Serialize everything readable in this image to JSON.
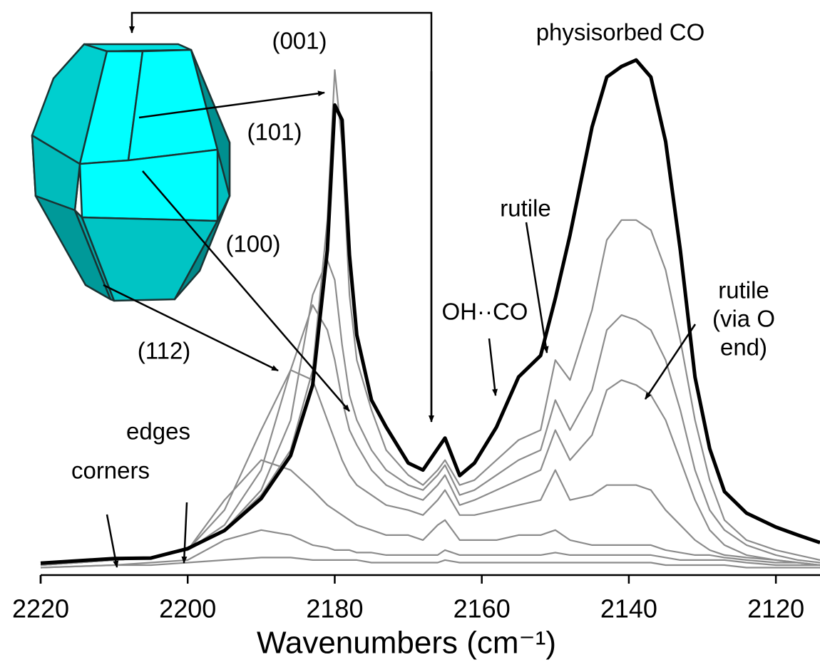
{
  "chart_data": {
    "type": "line",
    "xlabel": "Wavenumbers (cm⁻¹)",
    "x": [
      2220,
      2210,
      2205,
      2200,
      2195,
      2190,
      2186,
      2183,
      2181,
      2180,
      2179,
      2178,
      2177,
      2175,
      2173,
      2170,
      2168,
      2166,
      2165,
      2163,
      2161,
      2158,
      2155,
      2152,
      2150,
      2148,
      2145,
      2143,
      2141,
      2139,
      2137,
      2135,
      2133,
      2131,
      2129,
      2127,
      2124,
      2120,
      2117,
      2114
    ],
    "xlim": [
      2220,
      2114
    ],
    "xticks": [
      2220,
      2200,
      2180,
      2160,
      2140,
      2120
    ],
    "ylim": [
      -1,
      114
    ],
    "series": [
      {
        "color": "#8c8c8c",
        "values": [
          0.5,
          1,
          1,
          1.5,
          2,
          2.5,
          2.5,
          2,
          2,
          2,
          2,
          2,
          2,
          1.5,
          1.5,
          1.5,
          1.5,
          1.5,
          2,
          1.5,
          1.5,
          1.5,
          1.5,
          1.5,
          1.5,
          1.5,
          1.5,
          1.5,
          1.5,
          1.5,
          1.5,
          1,
          1,
          1,
          1,
          1,
          0.5,
          0.5,
          0.5,
          0.5
        ]
      },
      {
        "color": "#8c8c8c",
        "values": [
          0.5,
          1,
          1.5,
          2,
          6,
          8,
          7,
          5,
          4.5,
          4,
          4,
          4,
          3.5,
          3.5,
          3,
          3,
          3,
          3,
          4,
          3,
          3,
          3,
          3,
          3,
          3.5,
          3,
          3,
          3,
          3,
          3,
          3,
          2.5,
          2,
          2,
          2,
          2,
          1.5,
          1,
          1,
          1
        ]
      },
      {
        "color": "#8c8c8c",
        "values": [
          1,
          2,
          2.5,
          4,
          14,
          22,
          20,
          16,
          13,
          12,
          11,
          10,
          9,
          8,
          7,
          7,
          6,
          9,
          10,
          6,
          6,
          6,
          7,
          7,
          8,
          6,
          5,
          5,
          5,
          5,
          5,
          4,
          3.5,
          3,
          3,
          2.5,
          2,
          1.5,
          1.5,
          1
        ]
      },
      {
        "color": "#8c8c8c",
        "values": [
          1,
          2,
          2.5,
          4,
          12,
          28,
          40,
          38,
          30,
          26,
          22,
          19,
          17,
          15,
          13,
          12,
          11,
          14,
          16,
          11,
          11,
          12,
          13,
          14,
          20,
          14,
          15,
          17,
          17,
          17,
          16,
          12,
          9,
          6,
          4,
          3,
          2.5,
          2,
          1.5,
          1
        ]
      },
      {
        "color": "#8c8c8c",
        "values": [
          1,
          2,
          2.5,
          4,
          9,
          20,
          40,
          53,
          48,
          42,
          34,
          28,
          25,
          20,
          17,
          15,
          14,
          17,
          19,
          13,
          14,
          16,
          18,
          20,
          28,
          22,
          27,
          36,
          38,
          37,
          35,
          30,
          22,
          14,
          8,
          5,
          3,
          2,
          1.5,
          1
        ]
      },
      {
        "color": "#8c8c8c",
        "values": [
          1,
          2,
          2.5,
          4,
          8,
          16,
          30,
          55,
          62,
          58,
          45,
          35,
          30,
          24,
          20,
          17,
          16,
          19,
          21,
          15,
          16,
          19,
          22,
          24,
          34,
          28,
          36,
          48,
          51,
          50,
          48,
          42,
          32,
          20,
          12,
          8,
          5,
          3,
          2,
          1.5
        ]
      },
      {
        "color": "#8c8c8c",
        "values": [
          1,
          2,
          2.5,
          4,
          8,
          15,
          24,
          40,
          70,
          100,
          85,
          55,
          42,
          32,
          24,
          19,
          17,
          20,
          22,
          17,
          18,
          22,
          26,
          28,
          42,
          38,
          52,
          66,
          70,
          70,
          68,
          60,
          46,
          30,
          18,
          10,
          6,
          4,
          3,
          2
        ]
      },
      {
        "color": "#000000",
        "values": [
          1.4,
          2.3,
          2.4,
          4.3,
          7.9,
          14.3,
          22.9,
          37,
          64,
          93,
          90,
          63,
          47,
          34,
          28.6,
          21.4,
          20,
          24.3,
          26.4,
          18.9,
          21.4,
          28.6,
          38.6,
          42.9,
          54.3,
          67,
          88.6,
          98.6,
          100.7,
          102,
          98.6,
          85.7,
          64,
          38.6,
          24.3,
          15.7,
          11.4,
          8.6,
          7,
          5.5
        ]
      }
    ],
    "annotations": [
      {
        "text": "(001)"
      },
      {
        "text": "physisorbed CO"
      },
      {
        "text": "(101)"
      },
      {
        "text": "(100)"
      },
      {
        "text": "(112)"
      },
      {
        "text": "rutile"
      },
      {
        "text": "OH··CO"
      },
      {
        "lines": [
          "rutile",
          "(via O",
          "end)"
        ]
      },
      {
        "text": "edges"
      },
      {
        "text": "corners"
      }
    ]
  }
}
